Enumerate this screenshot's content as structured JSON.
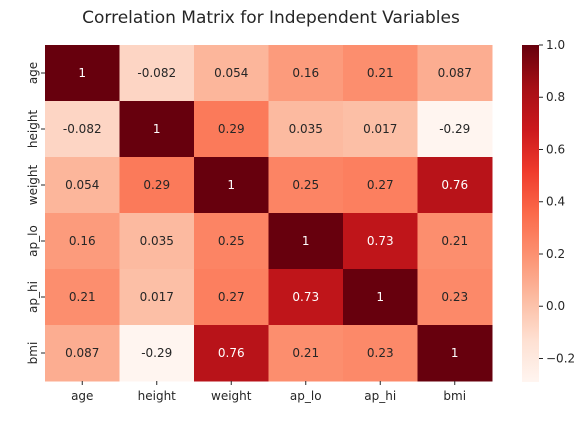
{
  "chart_data": {
    "type": "heatmap",
    "title": "Correlation Matrix for Independent Variables",
    "rows": [
      "age",
      "height",
      "weight",
      "ap_lo",
      "ap_hi",
      "bmi"
    ],
    "cols": [
      "age",
      "height",
      "weight",
      "ap_lo",
      "ap_hi",
      "bmi"
    ],
    "values": [
      [
        1,
        -0.082,
        0.054,
        0.16,
        0.21,
        0.087
      ],
      [
        -0.082,
        1,
        0.29,
        0.035,
        0.017,
        -0.29
      ],
      [
        0.054,
        0.29,
        1,
        0.25,
        0.27,
        0.76
      ],
      [
        0.16,
        0.035,
        0.25,
        1,
        0.73,
        0.21
      ],
      [
        0.21,
        0.017,
        0.27,
        0.73,
        1,
        0.23
      ],
      [
        0.087,
        -0.29,
        0.76,
        0.21,
        0.23,
        1
      ]
    ],
    "labels": [
      [
        "1",
        "-0.082",
        "0.054",
        "0.16",
        "0.21",
        "0.087"
      ],
      [
        "-0.082",
        "1",
        "0.29",
        "0.035",
        "0.017",
        "-0.29"
      ],
      [
        "0.054",
        "0.29",
        "1",
        "0.25",
        "0.27",
        "0.76"
      ],
      [
        "0.16",
        "0.035",
        "0.25",
        "1",
        "0.73",
        "0.21"
      ],
      [
        "0.21",
        "0.017",
        "0.27",
        "0.73",
        "1",
        "0.23"
      ],
      [
        "0.087",
        "-0.29",
        "0.76",
        "0.21",
        "0.23",
        "1"
      ]
    ],
    "colormap": "Reds",
    "vmin": -0.29,
    "vmax": 1.0,
    "colorbar_ticks": [
      -0.2,
      0.0,
      0.2,
      0.4,
      0.6,
      0.8,
      1.0
    ],
    "colorbar_tick_labels": [
      "−0.2",
      "0.0",
      "0.2",
      "0.4",
      "0.6",
      "0.8",
      "1.0"
    ],
    "colors": {
      "low": "#fff5f0",
      "high": "#67000d",
      "text_dark": "#262626",
      "text_light": "#ffffff"
    }
  }
}
